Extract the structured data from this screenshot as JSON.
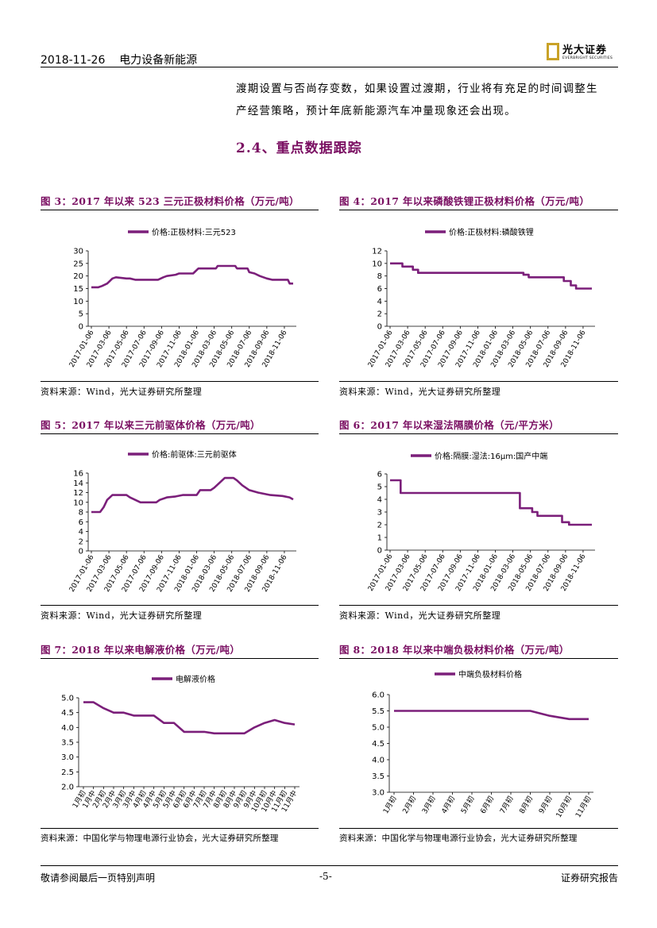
{
  "header": {
    "date": "2018-11-26",
    "sector": "电力设备新能源",
    "logo_name": "光大证券",
    "logo_sub": "EVERBRIGHT SECURITIES"
  },
  "body": {
    "para_line1": "渡期设置与否尚存变数，如果设置过渡期，行业将有充足的时间调整生",
    "para_line2": "产经营策略，预计年底新能源汽车冲量现象还会出现。",
    "section_title": "2.4、重点数据跟踪"
  },
  "figures": [
    {
      "title": "图 3：2017 年以来 523 三元正极材料价格（万元/吨）",
      "source": "资料来源：Wind，光大证券研究所整理"
    },
    {
      "title": "图 4：2017 年以来磷酸铁锂正极材料价格（万元/吨）",
      "source": "资料来源：Wind，光大证券研究所整理"
    },
    {
      "title": "图 5：2017 年以来三元前驱体价格（万元/吨）",
      "source": "资料来源：Wind，光大证券研究所整理"
    },
    {
      "title": "图 6：2017 年以来湿法隔膜价格（元/平方米）",
      "source": "资料来源：Wind，光大证券研究所整理"
    },
    {
      "title": "图 7：2018 年以来电解液价格（万元/吨）",
      "source": "资料来源：中国化学与物理电源行业协会，光大证券研究所整理"
    },
    {
      "title": "图 8：2018 年以来中端负极材料价格（万元/吨）",
      "source": "资料来源：中国化学与物理电源行业协会，光大证券研究所整理"
    }
  ],
  "footer": {
    "left": "敬请参阅最后一页特别声明",
    "page": "-5-",
    "right": "证券研究报告"
  },
  "colors": {
    "accent": "#7a0f62",
    "line": "#7b1f7a"
  },
  "chart_data": [
    {
      "type": "line",
      "legend": "价格:正极材料:三元523",
      "ylim": [
        0,
        30
      ],
      "yticks": [
        0,
        5,
        10,
        15,
        20,
        25,
        30
      ],
      "categories": [
        "2017-01-06",
        "2017-03-06",
        "2017-05-06",
        "2017-07-06",
        "2017-09-06",
        "2017-11-06",
        "2018-01-06",
        "2018-03-06",
        "2018-05-06",
        "2018-07-06",
        "2018-09-06",
        "2018-11-06"
      ],
      "steps": [
        [
          0,
          15.5
        ],
        [
          0.4,
          15.5
        ],
        [
          0.6,
          16
        ],
        [
          0.9,
          17
        ],
        [
          1.2,
          19
        ],
        [
          1.4,
          19.5
        ],
        [
          2,
          19
        ],
        [
          2.2,
          19
        ],
        [
          2.5,
          18.5
        ],
        [
          3.8,
          18.5
        ],
        [
          4.1,
          19.5
        ],
        [
          4.3,
          20
        ],
        [
          4.8,
          20.5
        ],
        [
          5.0,
          21
        ],
        [
          5.8,
          21
        ],
        [
          6.1,
          23
        ],
        [
          7.1,
          23
        ],
        [
          7.2,
          24
        ],
        [
          8.2,
          24
        ],
        [
          8.3,
          23
        ],
        [
          8.9,
          23
        ],
        [
          9.0,
          21.5
        ],
        [
          9.3,
          21
        ],
        [
          9.6,
          20
        ],
        [
          10,
          19
        ],
        [
          10.3,
          18.5
        ],
        [
          11.2,
          18.5
        ],
        [
          11.3,
          17
        ],
        [
          11.5,
          17
        ]
      ]
    },
    {
      "type": "line",
      "legend": "价格:正极材料:磷酸铁锂",
      "ylim": [
        0,
        12
      ],
      "yticks": [
        0,
        2,
        4,
        6,
        8,
        10,
        12
      ],
      "categories": [
        "2017-01-06",
        "2017-03-06",
        "2017-05-06",
        "2017-07-06",
        "2017-09-06",
        "2017-11-06",
        "2018-01-06",
        "2018-03-06",
        "2018-05-06",
        "2018-07-06",
        "2018-09-06",
        "2018-11-06"
      ],
      "steps": [
        [
          0,
          10
        ],
        [
          0.7,
          10
        ],
        [
          0.7,
          9.5
        ],
        [
          1.3,
          9.5
        ],
        [
          1.3,
          9
        ],
        [
          1.6,
          9
        ],
        [
          1.6,
          8.5
        ],
        [
          7.6,
          8.5
        ],
        [
          7.6,
          8.2
        ],
        [
          7.9,
          8.2
        ],
        [
          7.9,
          7.8
        ],
        [
          9.9,
          7.8
        ],
        [
          9.9,
          7.2
        ],
        [
          10.3,
          7.2
        ],
        [
          10.3,
          6.5
        ],
        [
          10.6,
          6.5
        ],
        [
          10.6,
          6
        ],
        [
          11.5,
          6
        ]
      ]
    },
    {
      "type": "line",
      "legend": "价格:前驱体:三元前驱体",
      "ylim": [
        0,
        16
      ],
      "yticks": [
        0,
        2,
        4,
        6,
        8,
        10,
        12,
        14,
        16
      ],
      "categories": [
        "2017-01-06",
        "2017-03-06",
        "2017-05-06",
        "2017-07-06",
        "2017-09-06",
        "2017-11-06",
        "2018-01-06",
        "2018-03-06",
        "2018-05-06",
        "2018-07-06",
        "2018-09-06",
        "2018-11-06"
      ],
      "steps": [
        [
          0,
          8
        ],
        [
          0.5,
          8
        ],
        [
          0.7,
          9
        ],
        [
          0.9,
          10.5
        ],
        [
          1.2,
          11.5
        ],
        [
          2,
          11.5
        ],
        [
          2.2,
          11
        ],
        [
          2.5,
          10.5
        ],
        [
          2.8,
          10
        ],
        [
          3.7,
          10
        ],
        [
          3.9,
          10.5
        ],
        [
          4.3,
          11
        ],
        [
          4.8,
          11.2
        ],
        [
          5.2,
          11.5
        ],
        [
          6.0,
          11.5
        ],
        [
          6.2,
          12.5
        ],
        [
          6.8,
          12.5
        ],
        [
          7.0,
          13
        ],
        [
          7.3,
          14
        ],
        [
          7.6,
          15
        ],
        [
          8.1,
          15
        ],
        [
          8.3,
          14.5
        ],
        [
          8.6,
          13.5
        ],
        [
          9.0,
          12.5
        ],
        [
          9.5,
          12
        ],
        [
          10.2,
          11.5
        ],
        [
          10.9,
          11.3
        ],
        [
          11.3,
          11
        ],
        [
          11.5,
          10.6
        ]
      ]
    },
    {
      "type": "line",
      "legend": "价格:隔膜:湿法:16μm:国产中端",
      "ylim": [
        0,
        6
      ],
      "yticks": [
        0,
        1,
        2,
        3,
        4,
        5,
        6
      ],
      "categories": [
        "2017-01-06",
        "2017-03-06",
        "2017-05-06",
        "2017-07-06",
        "2017-09-06",
        "2017-11-06",
        "2018-01-06",
        "2018-03-06",
        "2018-05-06",
        "2018-07-06",
        "2018-09-06",
        "2018-11-06"
      ],
      "steps": [
        [
          0,
          5.5
        ],
        [
          0.6,
          5.5
        ],
        [
          0.6,
          4.5
        ],
        [
          7.4,
          4.5
        ],
        [
          7.4,
          3.3
        ],
        [
          8.1,
          3.3
        ],
        [
          8.1,
          3.0
        ],
        [
          8.4,
          3.0
        ],
        [
          8.4,
          2.7
        ],
        [
          9.8,
          2.7
        ],
        [
          9.8,
          2.2
        ],
        [
          10.2,
          2.2
        ],
        [
          10.2,
          2.0
        ],
        [
          11.5,
          2.0
        ]
      ]
    },
    {
      "type": "line",
      "legend": "电解液价格",
      "ylim": [
        2.0,
        5.0
      ],
      "yticks": [
        "2.0",
        "2.5",
        "3.0",
        "3.5",
        "4.0",
        "4.5",
        "5.0"
      ],
      "categories": [
        "1月初",
        "1月中",
        "2月初",
        "2月中",
        "3月初",
        "3月中",
        "4月初",
        "4月中",
        "5月初",
        "5月中",
        "6月初",
        "6月中",
        "7月初",
        "7月中",
        "8月初",
        "8月中",
        "9月初",
        "9月中",
        "10月初",
        "10月中",
        "11月初",
        "11月中"
      ],
      "values": [
        4.85,
        4.85,
        4.65,
        4.5,
        4.5,
        4.4,
        4.4,
        4.4,
        4.15,
        4.15,
        3.85,
        3.85,
        3.85,
        3.8,
        3.8,
        3.8,
        3.8,
        4.0,
        4.15,
        4.25,
        4.15,
        4.1
      ]
    },
    {
      "type": "line",
      "legend": "中端负极材料价格",
      "ylim": [
        3.0,
        6.0
      ],
      "yticks": [
        "3.0",
        "3.5",
        "4.0",
        "4.5",
        "5.0",
        "5.5",
        "6.0"
      ],
      "categories": [
        "1月初",
        "2月初",
        "3月初",
        "4月初",
        "5月初",
        "6月初",
        "7月初",
        "8月初",
        "9月初",
        "10月初",
        "11月初"
      ],
      "values": [
        5.5,
        5.5,
        5.5,
        5.5,
        5.5,
        5.5,
        5.5,
        5.5,
        5.35,
        5.25,
        5.25
      ]
    }
  ]
}
